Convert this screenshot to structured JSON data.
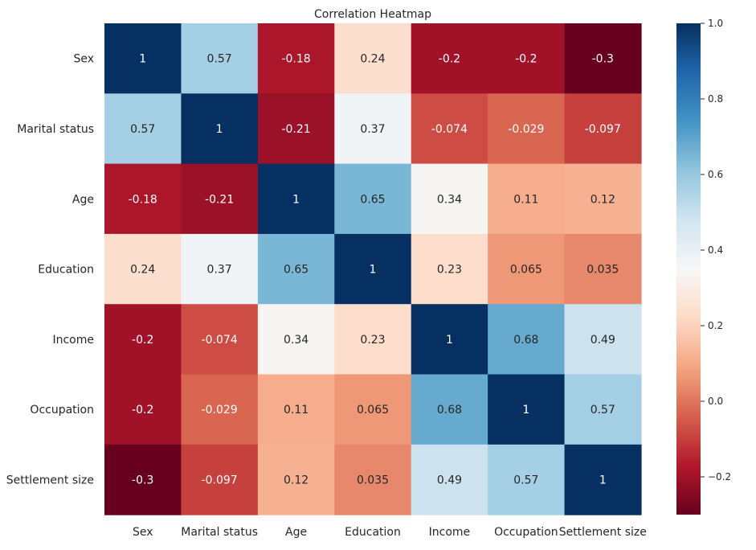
{
  "chart_data": {
    "type": "heatmap",
    "title": "Correlation Heatmap",
    "xlabel": "",
    "ylabel": "",
    "x_categories": [
      "Sex",
      "Marital status",
      "Age",
      "Education",
      "Income",
      "Occupation",
      "Settlement size"
    ],
    "y_categories": [
      "Sex",
      "Marital status",
      "Age",
      "Education",
      "Income",
      "Occupation",
      "Settlement size"
    ],
    "values": [
      [
        1,
        0.57,
        -0.18,
        0.24,
        -0.2,
        -0.2,
        -0.3
      ],
      [
        0.57,
        1,
        -0.21,
        0.37,
        -0.074,
        -0.029,
        -0.097
      ],
      [
        -0.18,
        -0.21,
        1,
        0.65,
        0.34,
        0.11,
        0.12
      ],
      [
        0.24,
        0.37,
        0.65,
        1,
        0.23,
        0.065,
        0.035
      ],
      [
        -0.2,
        -0.074,
        0.34,
        0.23,
        1,
        0.68,
        0.49
      ],
      [
        -0.2,
        -0.029,
        0.11,
        0.065,
        0.68,
        1,
        0.57
      ],
      [
        -0.3,
        -0.097,
        0.12,
        0.035,
        0.49,
        0.57,
        1
      ]
    ],
    "labels": [
      [
        "1",
        "0.57",
        "-0.18",
        "0.24",
        "-0.2",
        "-0.2",
        "-0.3"
      ],
      [
        "0.57",
        "1",
        "-0.21",
        "0.37",
        "-0.074",
        "-0.029",
        "-0.097"
      ],
      [
        "-0.18",
        "-0.21",
        "1",
        "0.65",
        "0.34",
        "0.11",
        "0.12"
      ],
      [
        "0.24",
        "0.37",
        "0.65",
        "1",
        "0.23",
        "0.065",
        "0.035"
      ],
      [
        "-0.2",
        "-0.074",
        "0.34",
        "0.23",
        "1",
        "0.68",
        "0.49"
      ],
      [
        "-0.2",
        "-0.029",
        "0.11",
        "0.065",
        "0.68",
        "1",
        "0.57"
      ],
      [
        "-0.3",
        "-0.097",
        "0.12",
        "0.035",
        "0.49",
        "0.57",
        "1"
      ]
    ],
    "colormap": "RdBu",
    "vmin": -0.3,
    "vmax": 1.0,
    "colorbar_ticks": [
      1.0,
      0.8,
      0.6,
      0.4,
      0.2,
      0.0,
      -0.2
    ],
    "colorbar_tick_labels": [
      "1.0",
      "0.8",
      "0.6",
      "0.4",
      "0.2",
      "0.0",
      "−0.2"
    ],
    "grid": false,
    "legend": "colorbar-right"
  }
}
